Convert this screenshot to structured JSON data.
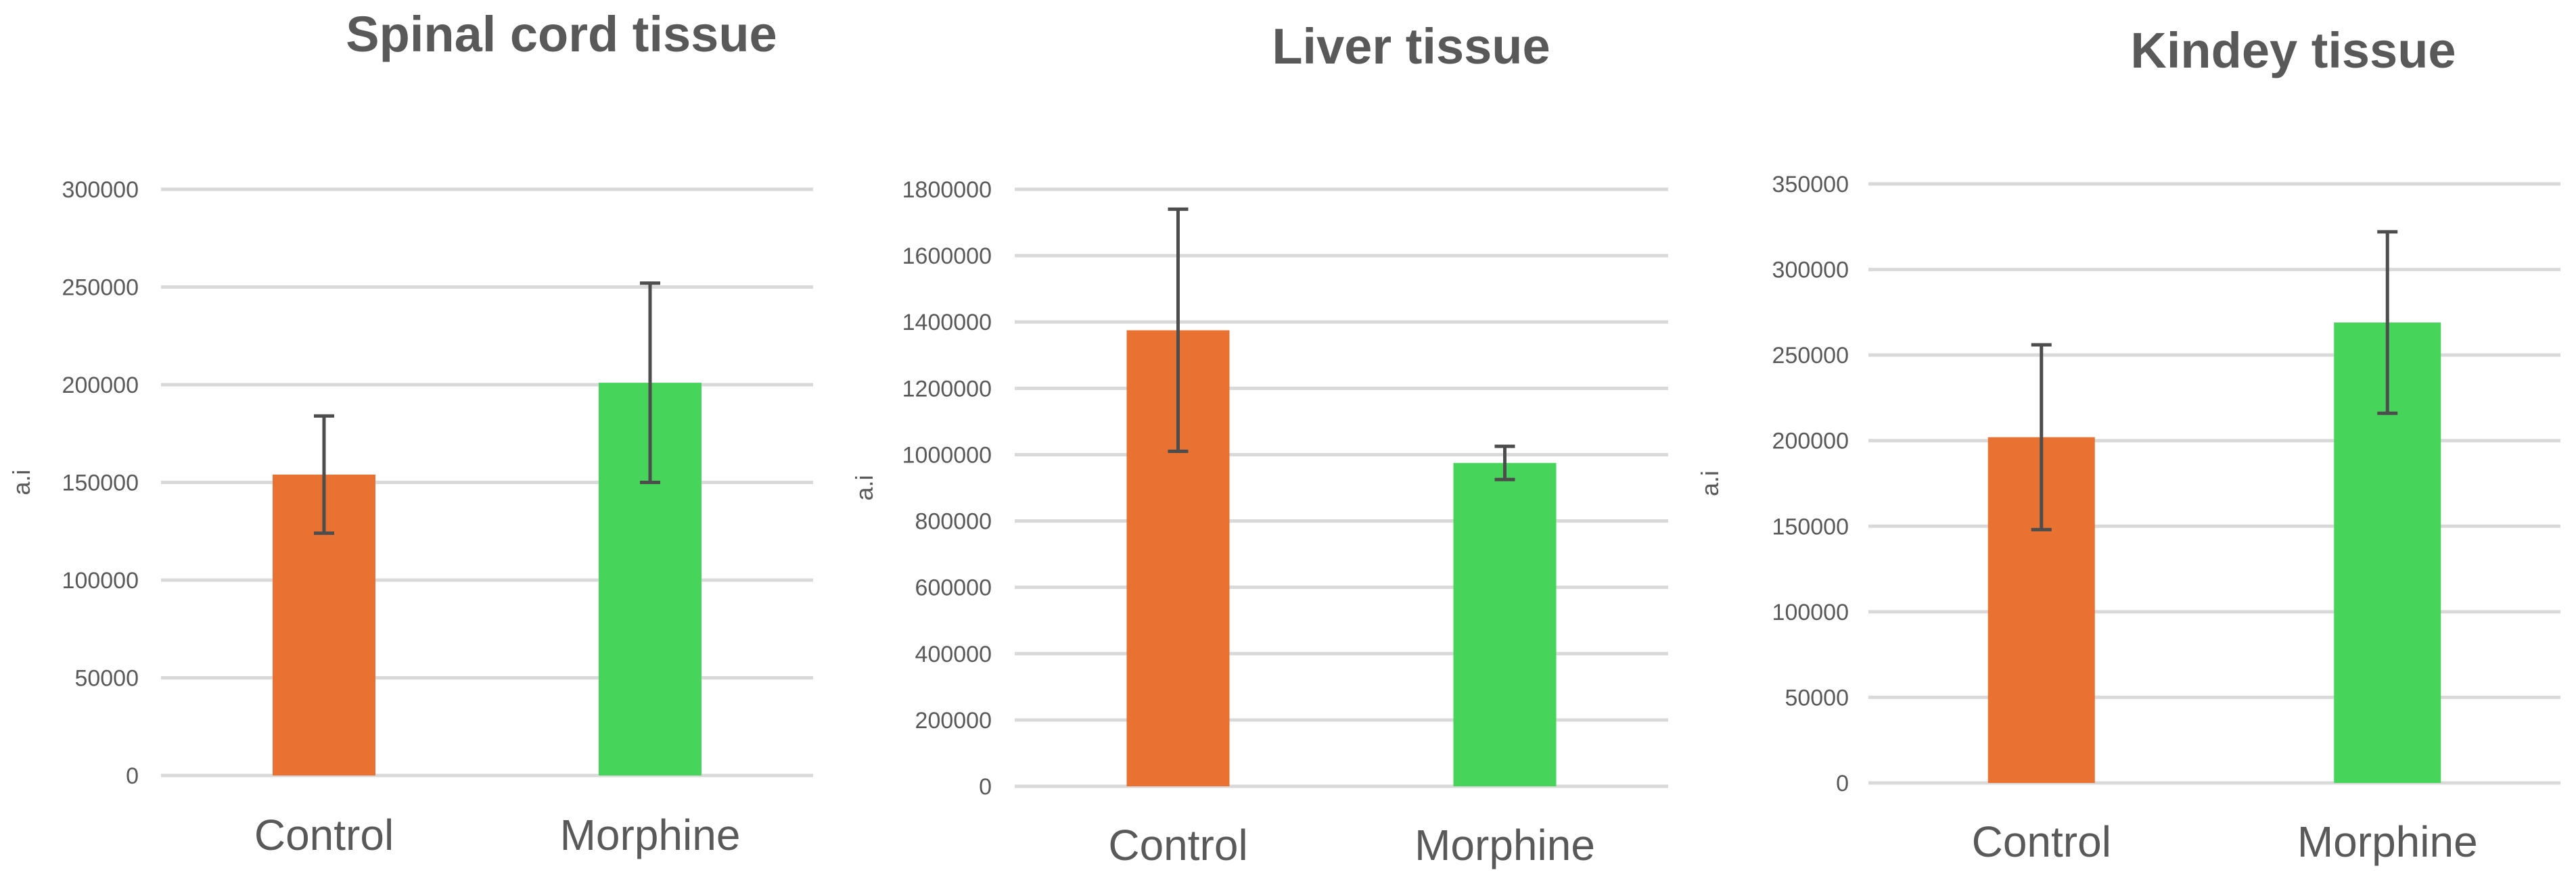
{
  "chart_data": [
    {
      "type": "bar",
      "title": "Spinal cord tissue",
      "ylabel": "a.i",
      "xlabel": "",
      "categories": [
        "Control",
        "Morphine"
      ],
      "values": [
        154000,
        201000
      ],
      "errors": [
        30000,
        51000
      ],
      "colors": [
        "#E97132",
        "#47D45A"
      ],
      "ylim": [
        0,
        300000
      ],
      "yticks": [
        0,
        50000,
        100000,
        150000,
        200000,
        250000,
        300000
      ],
      "grid": true,
      "legend": "none"
    },
    {
      "type": "bar",
      "title": "Liver tissue",
      "ylabel": "a.i",
      "xlabel": "",
      "categories": [
        "Control",
        "Morphine"
      ],
      "values": [
        1375000,
        975000
      ],
      "errors": [
        365000,
        50000
      ],
      "colors": [
        "#E97132",
        "#47D45A"
      ],
      "ylim": [
        0,
        1800000
      ],
      "yticks": [
        0,
        200000,
        400000,
        600000,
        800000,
        1000000,
        1200000,
        1400000,
        1600000,
        1800000
      ],
      "grid": true,
      "legend": "none"
    },
    {
      "type": "bar",
      "title": "Kindey tissue",
      "ylabel": "a.i",
      "xlabel": "",
      "categories": [
        "Control",
        "Morphine"
      ],
      "values": [
        202000,
        269000
      ],
      "errors": [
        54000,
        53000
      ],
      "colors": [
        "#E97132",
        "#47D45A"
      ],
      "ylim": [
        0,
        350000
      ],
      "yticks": [
        0,
        50000,
        100000,
        150000,
        200000,
        250000,
        300000,
        350000
      ],
      "grid": true,
      "legend": "none"
    }
  ]
}
